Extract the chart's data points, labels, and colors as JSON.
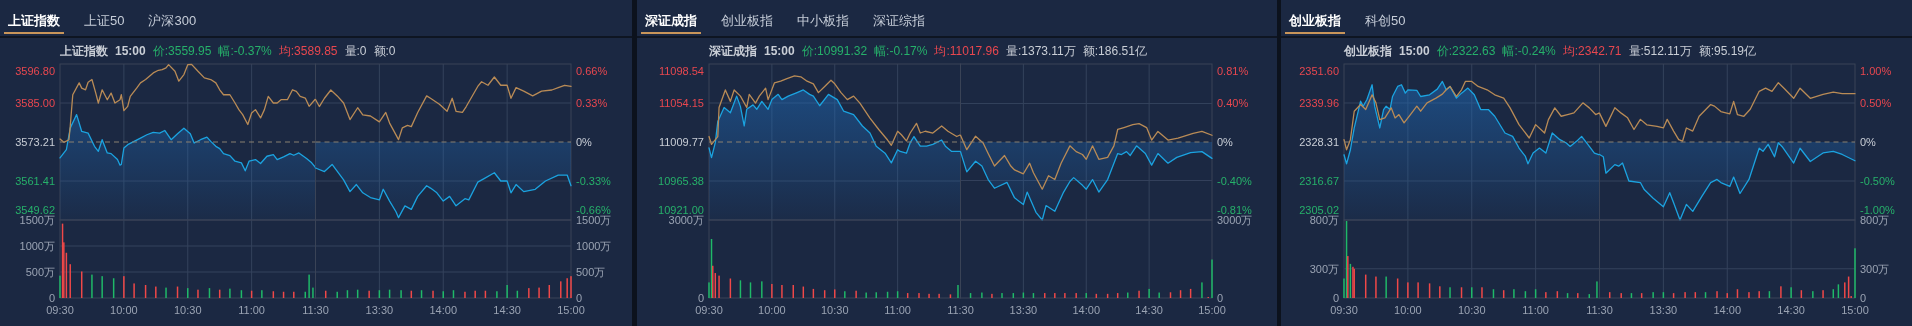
{
  "chart_data": [
    {
      "type": "line",
      "title": "上证指数",
      "annotations": [
        "上证50",
        "沪深300"
      ],
      "subtitle": "上证指数  15:00  价:3559.95  幅:-0.37%  均:3589.85  量:0  额:0",
      "grid": true,
      "tick_labels": "y",
      "xlim": [
        9.5,
        11.5
      ],
      "xticks": [
        {
          "value": 9.5,
          "label": null
        },
        {
          "value": 10,
          "label": null
        },
        {
          "value": 10.5,
          "label": null
        },
        {
          "value": 11,
          "label": null
        },
        {
          "value": 11.5,
          "label": null
        }
      ],
      "ylim": [
        3549.62,
        3596.8
      ],
      "yticks": [
        3549.62,
        3561.41,
        3573.21,
        {
          "value": 3585,
          "label": "3585.00"
        },
        {
          "value": 3596.8,
          "label": "3596.80"
        }
      ],
      "ref_lines": [
        {
          "axis": "y",
          "value": 3573.21,
          "color": "#8a8070",
          "line_style": "dashed"
        }
      ],
      "series": [
        {
          "type": "area",
          "color": "#1ba3e0",
          "x": [
            9.5,
            9.55,
            9.58,
            9.63,
            9.67,
            9.72,
            9.77,
            9.8,
            9.83,
            9.87,
            9.9,
            9.95,
            9.97,
            9.98,
            10,
            10.03,
            10.08,
            10.13,
            10.18,
            10.23,
            10.28,
            10.32,
            10.37,
            10.42,
            10.47,
            10.52,
            10.55,
            10.6,
            10.65,
            10.68,
            10.72,
            10.75,
            10.78,
            10.83,
            10.87,
            10.92,
            10.95,
            10.98,
            11.03,
            11.07,
            11.12,
            11.17,
            11.2,
            11.25,
            11.3,
            11.33,
            11.37,
            11.43,
            11.47,
            11.5
          ],
          "values": [
            3568.4,
            3570.9,
            3577.4,
            3581.5,
            3576.4,
            3575.9,
            3571.9,
            3570.4,
            3573.9,
            3569.9,
            3569.7,
            3567.9,
            3566.2,
            3566.4,
            3571.4,
            3572.4,
            3573.4,
            3574.4,
            3575.4,
            3576.1,
            3575.9,
            3576.7,
            3573.9,
            3575.7,
            3577.4,
            3575.7,
            3572.9,
            3573.9,
            3574.7,
            3573.4,
            3571.9,
            3571.2,
            3569.7,
            3569.1,
            3567.4,
            3566.9,
            3564.5,
            3567.4,
            3567.9,
            3566.7,
            3568.9,
            3569.4,
            3567.9,
            3568.7,
            3569.7,
            3569.2,
            3569.9,
            3568.2,
            3566.9,
            3565.5
          ]
        },
        {
          "type": "line",
          "color": "#b98b56",
          "x": [
            9.5,
            9.53,
            9.57,
            9.58,
            9.6,
            9.65,
            9.67,
            9.7,
            9.72,
            9.75,
            9.78,
            9.8,
            9.83,
            9.87,
            9.9,
            9.93,
            9.97,
            9.98,
            10,
            10.03,
            10.05,
            10.1,
            10.13,
            10.17,
            10.2,
            10.23,
            10.27,
            10.3,
            10.33,
            10.35,
            10.4,
            10.43,
            10.47,
            10.5,
            10.53,
            10.58,
            10.63,
            10.68,
            10.72,
            10.75,
            10.78,
            10.83,
            10.87,
            10.9,
            10.93,
            10.97,
            11,
            11.03,
            11.07,
            11.1,
            11.13,
            11.17,
            11.2,
            11.23,
            11.28,
            11.32,
            11.35,
            11.38,
            11.42,
            11.45,
            11.5
          ],
          "values": [
            3574.1,
            3573.1,
            3573.9,
            3577.9,
            3587.5,
            3591.1,
            3589.5,
            3589.0,
            3591.3,
            3592.1,
            3588.0,
            3585.0,
            3589.0,
            3586.0,
            3588.0,
            3585.0,
            3586.0,
            3587.5,
            3582.7,
            3584.0,
            3587.0,
            3589.5,
            3591.1,
            3592.1,
            3593.1,
            3594.1,
            3594.9,
            3595.1,
            3595.6,
            3596.6,
            3594.6,
            3591.6,
            3593.6,
            3596.6,
            3596.7,
            3594.6,
            3592.6,
            3592.1,
            3591.1,
            3589.0,
            3587.5,
            3587.5,
            3585.0,
            3583.0,
            3581.5,
            3578.5,
            3582.0,
            3583.0,
            3580.5,
            3583.0,
            3587.0,
            3585.0,
            3585.0,
            3586.0,
            3586.0,
            3589.0,
            3588.5,
            3587.0,
            3586.5,
            3584.0,
            3586.2
          ]
        }
      ]
    },
    {
      "type": "line",
      "grid": true,
      "tick_labels": "y",
      "xlim": [
        13,
        15
      ],
      "xticks": [
        {
          "value": 13.5,
          "label": null
        },
        {
          "value": 14,
          "label": null
        },
        {
          "value": 14.5,
          "label": null
        },
        {
          "value": 15,
          "label": null
        }
      ],
      "ylim": [
        -0.66,
        0.66
      ],
      "yticks": [
        {
          "value": -0.66,
          "label": "-0.66%"
        },
        {
          "value": -0.33,
          "label": "-0.33%"
        },
        {
          "value": 0,
          "label": "0%"
        },
        {
          "value": 0.33,
          "label": "0.33%"
        },
        {
          "value": 0.66,
          "label": "0.66%"
        }
      ],
      "ref_lines": [
        {
          "axis": "y",
          "value": 0,
          "color": "#8a8070",
          "line_style": "dashed"
        }
      ],
      "series": [
        {
          "type": "area",
          "color": "#1ba3e0",
          "x": [
            13,
            13.07,
            13.13,
            13.22,
            13.27,
            13.32,
            13.37,
            13.43,
            13.5,
            13.53,
            13.58,
            13.63,
            13.65,
            13.7,
            13.75,
            13.8,
            13.87,
            13.9,
            13.95,
            14,
            14.05,
            14.1,
            14.17,
            14.2,
            14.27,
            14.32,
            14.4,
            14.45,
            14.5,
            14.53,
            14.57,
            14.63,
            14.72,
            14.8,
            14.9,
            14.97,
            15
          ],
          "values": [
            -0.22,
            -0.25,
            -0.19,
            -0.32,
            -0.42,
            -0.36,
            -0.43,
            -0.47,
            -0.49,
            -0.4,
            -0.5,
            -0.59,
            -0.64,
            -0.54,
            -0.57,
            -0.46,
            -0.37,
            -0.39,
            -0.43,
            -0.5,
            -0.46,
            -0.54,
            -0.48,
            -0.49,
            -0.34,
            -0.31,
            -0.26,
            -0.33,
            -0.33,
            -0.43,
            -0.36,
            -0.42,
            -0.4,
            -0.33,
            -0.28,
            -0.28,
            -0.37
          ]
        },
        {
          "type": "line",
          "color": "#b98b56",
          "x": [
            13,
            13.03,
            13.07,
            13.12,
            13.17,
            13.22,
            13.27,
            13.33,
            13.37,
            13.43,
            13.5,
            13.55,
            13.58,
            13.63,
            13.65,
            13.68,
            13.72,
            13.75,
            13.8,
            13.87,
            13.9,
            13.97,
            14.03,
            14.07,
            14.1,
            14.15,
            14.18,
            14.27,
            14.3,
            14.35,
            14.4,
            14.45,
            14.5,
            14.53,
            14.57,
            14.63,
            14.7,
            14.77,
            14.85,
            14.9,
            14.95,
            15
          ],
          "values": [
            0.36,
            0.3,
            0.37,
            0.44,
            0.39,
            0.33,
            0.19,
            0.29,
            0.23,
            0.22,
            0.17,
            0.25,
            0.16,
            0.06,
            0.02,
            0.12,
            0.14,
            0.13,
            0.25,
            0.39,
            0.37,
            0.32,
            0.26,
            0.37,
            0.26,
            0.25,
            0.3,
            0.47,
            0.51,
            0.48,
            0.55,
            0.48,
            0.48,
            0.37,
            0.46,
            0.43,
            0.39,
            0.43,
            0.44,
            0.46,
            0.48,
            0.47
          ]
        }
      ]
    },
    {
      "type": "bar",
      "grid": true,
      "xlim": [
        9.5,
        11.5
      ],
      "xticks": [
        {
          "value": 9.5,
          "label": "09:30"
        },
        {
          "value": 10,
          "label": "10:00"
        },
        {
          "value": 10.5,
          "label": "10:30"
        },
        {
          "value": 11,
          "label": "11:00"
        },
        {
          "value": 11.5,
          "label": "11:30"
        }
      ],
      "ylim": [
        0,
        1500
      ],
      "yticks": [
        0,
        {
          "value": 500,
          "label": "500万"
        },
        {
          "value": 1000,
          "label": "1000万"
        },
        {
          "value": 1500,
          "label": "1500万"
        }
      ],
      "x": [
        9.5,
        9.52,
        9.53,
        9.55,
        9.58,
        9.67,
        9.75,
        9.83,
        9.92,
        10,
        10.08,
        10.17,
        10.25,
        10.33,
        10.42,
        10.5,
        10.58,
        10.67,
        10.75,
        10.83,
        10.92,
        11,
        11.08,
        11.17,
        11.25,
        11.33,
        11.42,
        11.45,
        11.48
      ],
      "values": [
        430,
        1430,
        1070,
        870,
        650,
        510,
        450,
        420,
        380,
        420,
        280,
        250,
        220,
        200,
        220,
        190,
        160,
        190,
        160,
        180,
        150,
        140,
        150,
        130,
        120,
        120,
        120,
        450,
        200
      ],
      "colors": [
        "#1fb968",
        "#f04848",
        "#f04848",
        "#f04848",
        "#f04848",
        "#f04848",
        "#1fb968",
        "#1fb968",
        "#1fb968",
        "#f04848",
        "#f04848",
        "#f04848",
        "#f04848",
        "#1fb968",
        "#f04848",
        "#1fb968",
        "#f04848",
        "#1fb968",
        "#f04848",
        "#1fb968",
        "#1fb968",
        "#f04848",
        "#1fb968",
        "#f04848",
        "#f04848",
        "#f04848",
        "#1fb968",
        "#1fb968",
        "#1fb968"
      ]
    },
    {
      "type": "bar",
      "grid": true,
      "xlim": [
        13,
        15
      ],
      "xticks": [
        {
          "value": 13.5,
          "label": "13:30"
        },
        {
          "value": 14,
          "label": "14:00"
        },
        {
          "value": 14.5,
          "label": "14:30"
        },
        {
          "value": 15,
          "label": "15:00"
        }
      ],
      "ylim": [
        0,
        1500
      ],
      "yticks": [
        0,
        {
          "value": 500,
          "label": "500万"
        },
        {
          "value": 1000,
          "label": "1000万"
        },
        {
          "value": 1500,
          "label": "1500万"
        }
      ],
      "x": [
        13.08,
        13.17,
        13.25,
        13.33,
        13.42,
        13.5,
        13.58,
        13.67,
        13.75,
        13.83,
        13.92,
        14,
        14.08,
        14.17,
        14.25,
        14.33,
        14.42,
        14.5,
        14.58,
        14.67,
        14.75,
        14.83,
        14.92,
        14.97,
        15
      ],
      "values": [
        140,
        120,
        150,
        160,
        140,
        150,
        160,
        150,
        140,
        150,
        140,
        130,
        150,
        120,
        140,
        140,
        130,
        250,
        140,
        190,
        200,
        250,
        320,
        380,
        420
      ],
      "colors": [
        "#f04848",
        "#1fb968",
        "#1fb968",
        "#1fb968",
        "#f04848",
        "#1fb968",
        "#1fb968",
        "#1fb968",
        "#f04848",
        "#1fb968",
        "#f04848",
        "#1fb968",
        "#1fb968",
        "#f04848",
        "#f04848",
        "#f04848",
        "#1fb968",
        "#1fb968",
        "#1fb968",
        "#f04848",
        "#f04848",
        "#f04848",
        "#f04848",
        "#f04848",
        "#f04848"
      ]
    },
    {
      "type": "line",
      "title": "深证成指",
      "annotations": [
        "创业板指",
        "中小板指",
        "深证综指"
      ],
      "subtitle": "深证成指  15:00  价:10991.32  幅:-0.17%  均:11017.96  量:1373.11万  额:186.51亿",
      "grid": true,
      "tick_labels": "y",
      "xlim": [
        9.5,
        11.5
      ],
      "xticks": [
        {
          "value": 9.5,
          "label": null
        },
        {
          "value": 10,
          "label": null
        },
        {
          "value": 10.5,
          "label": null
        },
        {
          "value": 11,
          "label": null
        },
        {
          "value": 11.5,
          "label": null
        }
      ],
      "ylim": [
        10921.0,
        11098.54
      ],
      "yticks": [
        {
          "value": 10921,
          "label": "10921.00"
        },
        10965.38,
        11009.77,
        11054.15,
        11098.54
      ],
      "ref_lines": [
        {
          "axis": "y",
          "value": 11009.77,
          "color": "#8a8070",
          "line_style": "dashed"
        }
      ],
      "series": [
        {
          "type": "area",
          "color": "#1ba3e0",
          "x": [
            9.5,
            9.52,
            9.55,
            9.57,
            9.62,
            9.67,
            9.72,
            9.75,
            9.78,
            9.8,
            9.85,
            9.88,
            9.92,
            9.97,
            10,
            10.05,
            10.08,
            10.13,
            10.2,
            10.25,
            10.3,
            10.33,
            10.38,
            10.45,
            10.52,
            10.57,
            10.65,
            10.72,
            10.78,
            10.83,
            10.9,
            10.95,
            11,
            11.02,
            11.07,
            11.1,
            11.13,
            11.18,
            11.23,
            11.28,
            11.35,
            11.38,
            11.43,
            11.5
          ],
          "values": [
            11003,
            10992,
            11009,
            11033,
            11049,
            11043,
            11062,
            11050,
            11028,
            11047,
            11052,
            11047,
            11056,
            11047,
            11058,
            11064,
            11058,
            11062,
            11066,
            11069,
            11064,
            11062,
            11051,
            11064,
            11058,
            11045,
            11041,
            11028,
            11020,
            11005,
            10997,
            10986,
            11001,
            10999,
            10997,
            11009,
            11016,
            11005,
            11005,
            11007,
            11012,
            11005,
            10999,
            10999
          ]
        },
        {
          "type": "line",
          "color": "#b98b56",
          "x": [
            9.5,
            9.52,
            9.57,
            9.58,
            9.63,
            9.67,
            9.7,
            9.75,
            9.8,
            9.82,
            9.87,
            9.9,
            9.95,
            9.97,
            10.02,
            10.07,
            10.12,
            10.18,
            10.23,
            10.28,
            10.33,
            10.37,
            10.42,
            10.47,
            10.5,
            10.55,
            10.6,
            10.65,
            10.7,
            10.78,
            10.85,
            10.92,
            10.95,
            11,
            11.03,
            11.07,
            11.1,
            11.15,
            11.18,
            11.22,
            11.28,
            11.35,
            11.4,
            11.47,
            11.5
          ],
          "values": [
            11016,
            11007,
            11016,
            11049,
            11069,
            11056,
            11069,
            11062,
            11049,
            11064,
            11054,
            11062,
            11071,
            11058,
            11077,
            11079,
            11082,
            11085,
            11084,
            11079,
            11076,
            11066,
            11073,
            11080,
            11076,
            11066,
            11058,
            11062,
            11054,
            11037,
            11024,
            11012,
            11006,
            11022,
            11018,
            11011,
            11020,
            11031,
            11020,
            11022,
            11020,
            11028,
            11022,
            11016,
            11018
          ]
        }
      ]
    },
    {
      "type": "line",
      "grid": true,
      "tick_labels": "y",
      "xlim": [
        13,
        15
      ],
      "xticks": [
        {
          "value": 13.5,
          "label": null
        },
        {
          "value": 14,
          "label": null
        },
        {
          "value": 14.5,
          "label": null
        },
        {
          "value": 15,
          "label": null
        }
      ],
      "ylim": [
        -0.81,
        0.81
      ],
      "yticks": [
        {
          "value": -0.81,
          "label": "-0.81%"
        },
        {
          "value": -0.4,
          "label": "-0.40%"
        },
        {
          "value": 0,
          "label": "0%"
        },
        {
          "value": 0.4,
          "label": "0.40%"
        },
        {
          "value": 0.81,
          "label": "0.81%"
        }
      ],
      "ref_lines": [
        {
          "axis": "y",
          "value": 0,
          "color": "#8a8070",
          "line_style": "dashed"
        }
      ],
      "series": [
        {
          "type": "area",
          "color": "#1ba3e0",
          "x": [
            13,
            13.05,
            13.12,
            13.17,
            13.22,
            13.27,
            13.37,
            13.43,
            13.5,
            13.53,
            13.6,
            13.65,
            13.68,
            13.75,
            13.82,
            13.87,
            13.9,
            13.97,
            14,
            14.05,
            14.1,
            14.17,
            14.25,
            14.28,
            14.32,
            14.35,
            14.4,
            14.47,
            14.52,
            14.57,
            14.65,
            14.72,
            14.83,
            14.92,
            15
          ],
          "values": [
            -0.1,
            -0.31,
            -0.2,
            -0.25,
            -0.39,
            -0.48,
            -0.42,
            -0.58,
            -0.65,
            -0.52,
            -0.73,
            -0.81,
            -0.66,
            -0.72,
            -0.52,
            -0.41,
            -0.37,
            -0.45,
            -0.49,
            -0.39,
            -0.52,
            -0.39,
            -0.12,
            -0.13,
            -0.1,
            -0.14,
            -0.04,
            -0.12,
            -0.24,
            -0.12,
            -0.22,
            -0.16,
            -0.11,
            -0.1,
            -0.17
          ]
        },
        {
          "type": "line",
          "color": "#b98b56",
          "x": [
            13,
            13.05,
            13.12,
            13.18,
            13.22,
            13.27,
            13.35,
            13.4,
            13.43,
            13.5,
            13.55,
            13.58,
            13.65,
            13.7,
            13.75,
            13.8,
            13.87,
            13.92,
            13.97,
            14,
            14.05,
            14.1,
            14.17,
            14.22,
            14.25,
            14.3,
            14.37,
            14.42,
            14.48,
            14.52,
            14.57,
            14.65,
            14.73,
            14.85,
            14.92,
            15
          ],
          "values": [
            0.07,
            -0.08,
            0.06,
            -0.01,
            -0.12,
            -0.25,
            -0.14,
            -0.25,
            -0.29,
            -0.33,
            -0.22,
            -0.32,
            -0.49,
            -0.35,
            -0.39,
            -0.22,
            -0.04,
            -0.1,
            -0.13,
            -0.18,
            -0.04,
            -0.18,
            -0.16,
            -0.04,
            0.13,
            0.15,
            0.18,
            0.19,
            0.15,
            0.02,
            0.11,
            0.02,
            0.04,
            0.09,
            0.11,
            0.07
          ]
        }
      ]
    },
    {
      "type": "bar",
      "grid": true,
      "xlim": [
        9.5,
        11.5
      ],
      "xticks": [
        {
          "value": 9.5,
          "label": "09:30"
        },
        {
          "value": 10,
          "label": "10:00"
        },
        {
          "value": 10.5,
          "label": "10:30"
        },
        {
          "value": 11,
          "label": "11:00"
        },
        {
          "value": 11.5,
          "label": "11:30"
        }
      ],
      "ylim": [
        0,
        3000
      ],
      "yticks": [
        0,
        {
          "value": 3000,
          "label": "3000万"
        }
      ],
      "x": [
        9.5,
        9.52,
        9.53,
        9.55,
        9.58,
        9.67,
        9.75,
        9.83,
        9.92,
        10,
        10.08,
        10.17,
        10.25,
        10.33,
        10.42,
        10.5,
        10.58,
        10.67,
        10.75,
        10.83,
        10.92,
        11,
        11.08,
        11.17,
        11.25,
        11.33,
        11.42,
        11.48
      ],
      "values": [
        600,
        2270,
        1240,
        960,
        860,
        750,
        680,
        600,
        640,
        540,
        500,
        500,
        440,
        350,
        300,
        330,
        260,
        280,
        210,
        220,
        240,
        260,
        190,
        190,
        160,
        160,
        140,
        500
      ],
      "colors": [
        "#1fb968",
        "#1fb968",
        "#f04848",
        "#f04848",
        "#f04848",
        "#f04848",
        "#1fb968",
        "#1fb968",
        "#1fb968",
        "#f04848",
        "#f04848",
        "#f04848",
        "#f04848",
        "#f04848",
        "#f04848",
        "#f04848",
        "#1fb968",
        "#f04848",
        "#1fb968",
        "#1fb968",
        "#1fb968",
        "#1fb968",
        "#f04848",
        "#f04848",
        "#f04848",
        "#f04848",
        "#f04848",
        "#1fb968"
      ]
    },
    {
      "type": "bar",
      "grid": true,
      "xlim": [
        13,
        15
      ],
      "xticks": [
        {
          "value": 13.5,
          "label": "13:30"
        },
        {
          "value": 14,
          "label": "14:00"
        },
        {
          "value": 14.5,
          "label": "14:30"
        },
        {
          "value": 15,
          "label": "15:00"
        }
      ],
      "ylim": [
        0,
        3000
      ],
      "yticks": [
        0,
        {
          "value": 3000,
          "label": "3000万"
        }
      ],
      "x": [
        13.08,
        13.17,
        13.25,
        13.33,
        13.42,
        13.5,
        13.58,
        13.67,
        13.75,
        13.83,
        13.92,
        14,
        14.08,
        14.17,
        14.25,
        14.33,
        14.42,
        14.5,
        14.58,
        14.67,
        14.75,
        14.83,
        14.92,
        14.97,
        15
      ],
      "values": [
        190,
        210,
        160,
        190,
        190,
        210,
        190,
        190,
        190,
        190,
        190,
        190,
        160,
        160,
        190,
        210,
        280,
        350,
        210,
        220,
        300,
        350,
        600,
        40,
        1480
      ],
      "colors": [
        "#1fb968",
        "#1fb968",
        "#f04848",
        "#1fb968",
        "#1fb968",
        "#1fb968",
        "#1fb968",
        "#f04848",
        "#f04848",
        "#f04848",
        "#f04848",
        "#1fb968",
        "#f04848",
        "#f04848",
        "#f04848",
        "#1fb968",
        "#f04848",
        "#1fb968",
        "#1fb968",
        "#f04848",
        "#f04848",
        "#f04848",
        "#1fb968",
        "#f04848",
        "#1fb968"
      ]
    },
    {
      "type": "line",
      "title": "创业板指",
      "annotations": [
        "科创50"
      ],
      "subtitle": "创业板指  15:00  价:2322.63  幅:-0.24%  均:2342.71  量:512.11万  额:95.19亿",
      "grid": true,
      "tick_labels": "y",
      "xlim": [
        9.5,
        11.5
      ],
      "xticks": [
        {
          "value": 9.5,
          "label": null
        },
        {
          "value": 10,
          "label": null
        },
        {
          "value": 10.5,
          "label": null
        },
        {
          "value": 11,
          "label": null
        },
        {
          "value": 11.5,
          "label": null
        }
      ],
      "ylim": [
        2305.02,
        2351.6
      ],
      "yticks": [
        2305.02,
        2316.67,
        2328.31,
        2339.96,
        {
          "value": 2351.6,
          "label": "2351.60"
        }
      ],
      "ref_lines": [
        {
          "axis": "y",
          "value": 2328.31,
          "color": "#8a8070",
          "line_style": "dashed"
        }
      ],
      "series": [
        {
          "type": "area",
          "color": "#1ba3e0",
          "x": [
            9.5,
            9.52,
            9.55,
            9.58,
            9.63,
            9.65,
            9.68,
            9.72,
            9.74,
            9.78,
            9.81,
            9.83,
            9.86,
            9.88,
            9.92,
            9.95,
            9.98,
            10,
            10.07,
            10.1,
            10.17,
            10.23,
            10.27,
            10.3,
            10.33,
            10.38,
            10.42,
            10.47,
            10.52,
            10.57,
            10.63,
            10.68,
            10.76,
            10.82,
            10.87,
            10.92,
            10.94,
            10.98,
            11.03,
            11.08,
            11.13,
            11.19,
            11.24,
            11.27,
            11.32,
            11.36,
            11.41,
            11.46,
            11.5
          ],
          "values": [
            2324.5,
            2321.8,
            2326.0,
            2332.5,
            2340.5,
            2339.0,
            2341.0,
            2345.4,
            2339.0,
            2332.5,
            2338.0,
            2339.0,
            2338.0,
            2341.9,
            2344.9,
            2345.4,
            2342.9,
            2343.9,
            2343.7,
            2341.9,
            2342.4,
            2344.1,
            2346.4,
            2343.9,
            2344.9,
            2341.4,
            2342.9,
            2344.4,
            2342.4,
            2338.0,
            2338.0,
            2336.0,
            2331.0,
            2330.0,
            2326.5,
            2324.0,
            2321.8,
            2325.0,
            2326.5,
            2325.0,
            2331.0,
            2329.0,
            2328.0,
            2327.0,
            2328.5,
            2330.0,
            2327.5,
            2325.0,
            2324.5
          ]
        },
        {
          "type": "line",
          "color": "#b98b56",
          "x": [
            9.5,
            9.52,
            9.55,
            9.58,
            9.63,
            9.67,
            9.72,
            9.75,
            9.78,
            9.82,
            9.87,
            9.9,
            9.93,
            9.97,
            10.02,
            10.07,
            10.1,
            10.15,
            10.22,
            10.27,
            10.3,
            10.33,
            10.38,
            10.42,
            10.45,
            10.5,
            10.55,
            10.62,
            10.68,
            10.75,
            10.8,
            10.87,
            10.95,
            11,
            11.07,
            11.1,
            11.15,
            11.2,
            11.25,
            11.3,
            11.37,
            11.42,
            11.47,
            11.5
          ],
          "values": [
            2329.0,
            2326.0,
            2329.0,
            2337.5,
            2339.5,
            2338.0,
            2342.4,
            2340.0,
            2335.0,
            2335.5,
            2338.5,
            2335.5,
            2336.5,
            2334.0,
            2336.5,
            2339.0,
            2337.5,
            2340.0,
            2341.4,
            2342.6,
            2343.9,
            2344.9,
            2341.9,
            2343.9,
            2346.4,
            2346.4,
            2344.9,
            2343.9,
            2342.4,
            2341.4,
            2338.5,
            2333.5,
            2329.5,
            2333.5,
            2331.0,
            2335.0,
            2338.5,
            2336.0,
            2336.5,
            2337.0,
            2340.0,
            2338.5,
            2336.5,
            2337.0
          ]
        }
      ]
    },
    {
      "type": "line",
      "grid": true,
      "tick_labels": "y",
      "xlim": [
        13,
        15
      ],
      "xticks": [
        {
          "value": 13.5,
          "label": null
        },
        {
          "value": 14,
          "label": null
        },
        {
          "value": 14.5,
          "label": null
        },
        {
          "value": 15,
          "label": null
        }
      ],
      "ylim": [
        -1,
        1
      ],
      "yticks": [
        {
          "value": -1,
          "label": "-1.00%"
        },
        {
          "value": -0.5,
          "label": "-0.50%"
        },
        {
          "value": 0,
          "label": "0%"
        },
        {
          "value": 0.5,
          "label": "0.50%"
        },
        {
          "value": 1,
          "label": "1.00%"
        }
      ],
      "ref_lines": [
        {
          "axis": "y",
          "value": 0,
          "color": "#8a8070",
          "line_style": "dashed"
        }
      ],
      "series": [
        {
          "type": "area",
          "color": "#1ba3e0",
          "x": [
            13,
            13.03,
            13.05,
            13.12,
            13.15,
            13.18,
            13.23,
            13.32,
            13.35,
            13.42,
            13.5,
            13.55,
            13.58,
            13.63,
            13.68,
            13.73,
            13.8,
            13.87,
            13.92,
            13.95,
            14.02,
            14.05,
            14.1,
            14.17,
            14.25,
            14.28,
            14.32,
            14.37,
            14.4,
            14.43,
            14.52,
            14.57,
            14.65,
            14.75,
            14.83,
            14.9,
            15
          ],
          "values": [
            -0.16,
            -0.19,
            -0.4,
            -0.29,
            -0.31,
            -0.27,
            -0.5,
            -0.52,
            -0.61,
            -0.72,
            -0.83,
            -0.65,
            -0.78,
            -1.0,
            -0.8,
            -0.89,
            -0.7,
            -0.52,
            -0.48,
            -0.52,
            -0.57,
            -0.45,
            -0.66,
            -0.48,
            -0.08,
            -0.12,
            -0.03,
            -0.19,
            -0.01,
            -0.06,
            -0.27,
            -0.08,
            -0.25,
            -0.14,
            -0.12,
            -0.16,
            -0.24
          ]
        },
        {
          "type": "line",
          "color": "#b98b56",
          "x": [
            13,
            13.05,
            13.12,
            13.17,
            13.22,
            13.27,
            13.32,
            13.37,
            13.45,
            13.5,
            13.53,
            13.58,
            13.62,
            13.65,
            13.68,
            13.73,
            13.78,
            13.87,
            13.9,
            13.95,
            14.02,
            14.05,
            14.08,
            14.13,
            14.18,
            14.25,
            14.3,
            14.35,
            14.4,
            14.45,
            14.52,
            14.57,
            14.65,
            14.75,
            14.83,
            14.9,
            15
          ],
          "values": [
            0.37,
            0.2,
            0.44,
            0.37,
            0.31,
            0.16,
            0.29,
            0.22,
            0.2,
            0.18,
            0.29,
            0.14,
            0.03,
            0.01,
            0.18,
            0.14,
            0.33,
            0.48,
            0.46,
            0.39,
            0.36,
            0.52,
            0.35,
            0.33,
            0.42,
            0.65,
            0.69,
            0.65,
            0.76,
            0.68,
            0.56,
            0.69,
            0.56,
            0.61,
            0.64,
            0.62,
            0.62
          ]
        }
      ]
    },
    {
      "type": "bar",
      "grid": true,
      "xlim": [
        9.5,
        11.5
      ],
      "xticks": [
        {
          "value": 9.5,
          "label": "09:30"
        },
        {
          "value": 10,
          "label": "10:00"
        },
        {
          "value": 10.5,
          "label": "10:30"
        },
        {
          "value": 11,
          "label": "11:00"
        },
        {
          "value": 11.5,
          "label": "11:30"
        }
      ],
      "ylim": [
        0,
        800
      ],
      "yticks": [
        0,
        {
          "value": 300,
          "label": "300万"
        },
        {
          "value": 800,
          "label": "800万"
        }
      ],
      "x": [
        9.5,
        9.52,
        9.53,
        9.55,
        9.57,
        9.58,
        9.67,
        9.75,
        9.83,
        9.92,
        10,
        10.08,
        10.17,
        10.25,
        10.33,
        10.42,
        10.5,
        10.58,
        10.67,
        10.75,
        10.83,
        10.92,
        11,
        11.08,
        11.17,
        11.25,
        11.33,
        11.42,
        11.48
      ],
      "values": [
        200,
        790,
        430,
        350,
        320,
        300,
        240,
        220,
        220,
        200,
        160,
        160,
        150,
        120,
        110,
        110,
        110,
        110,
        90,
        80,
        90,
        70,
        90,
        60,
        70,
        50,
        50,
        40,
        170
      ],
      "colors": [
        "#1fb968",
        "#1fb968",
        "#f04848",
        "#1fb968",
        "#f04848",
        "#f04848",
        "#f04848",
        "#f04848",
        "#1fb968",
        "#f04848",
        "#f04848",
        "#f04848",
        "#f04848",
        "#f04848",
        "#1fb968",
        "#f04848",
        "#1fb968",
        "#f04848",
        "#1fb968",
        "#f04848",
        "#1fb968",
        "#1fb968",
        "#1fb968",
        "#f04848",
        "#f04848",
        "#1fb968",
        "#f04848",
        "#1fb968",
        "#1fb968"
      ]
    },
    {
      "type": "bar",
      "grid": true,
      "xlim": [
        13,
        15
      ],
      "xticks": [
        {
          "value": 13.5,
          "label": "13:30"
        },
        {
          "value": 14,
          "label": "14:00"
        },
        {
          "value": 14.5,
          "label": "14:30"
        },
        {
          "value": 15,
          "label": "15:00"
        }
      ],
      "ylim": [
        0,
        800
      ],
      "yticks": [
        0,
        {
          "value": 300,
          "label": "300万"
        },
        {
          "value": 800,
          "label": "800万"
        }
      ],
      "x": [
        13.08,
        13.17,
        13.25,
        13.33,
        13.42,
        13.5,
        13.58,
        13.67,
        13.75,
        13.83,
        13.92,
        14,
        14.08,
        14.17,
        14.25,
        14.33,
        14.42,
        14.5,
        14.58,
        14.67,
        14.75,
        14.83,
        14.87,
        14.92,
        14.95,
        14.97,
        15
      ],
      "values": [
        60,
        50,
        50,
        50,
        60,
        60,
        50,
        60,
        60,
        60,
        70,
        50,
        90,
        60,
        70,
        70,
        120,
        110,
        80,
        70,
        80,
        90,
        140,
        160,
        220,
        20,
        510
      ],
      "colors": [
        "#f04848",
        "#f04848",
        "#1fb968",
        "#f04848",
        "#1fb968",
        "#1fb968",
        "#f04848",
        "#f04848",
        "#f04848",
        "#1fb968",
        "#f04848",
        "#f04848",
        "#f04848",
        "#f04848",
        "#f04848",
        "#1fb968",
        "#f04848",
        "#1fb968",
        "#f04848",
        "#1fb968",
        "#f04848",
        "#1fb968",
        "#1fb968",
        "#f04848",
        "#f04848",
        "#f04848",
        "#1fb968"
      ]
    }
  ]
}
